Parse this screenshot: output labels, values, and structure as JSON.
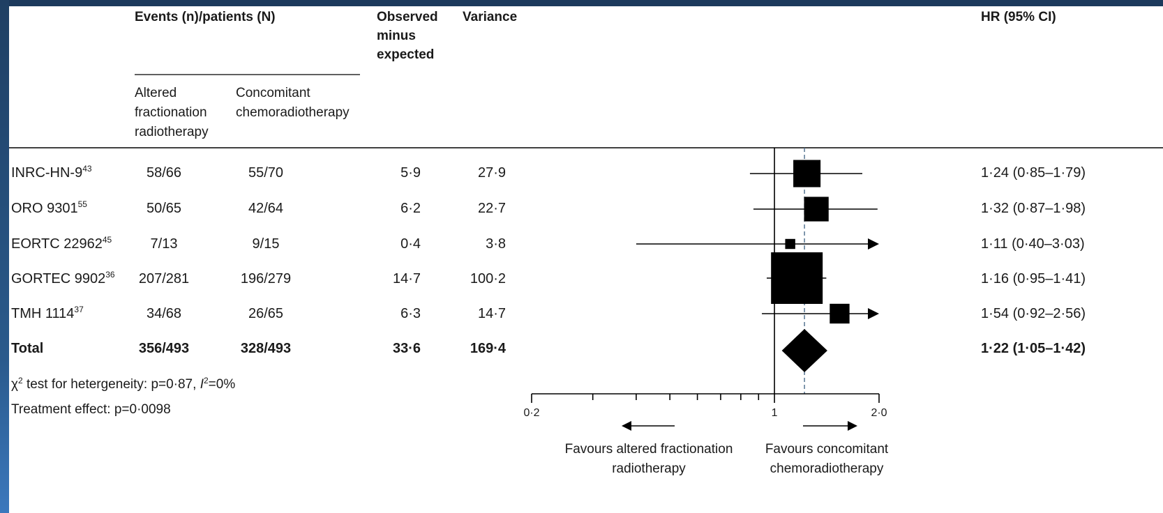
{
  "header": {
    "events": "Events (n)/patients (N)",
    "altered": [
      "Altered",
      "fractionation",
      "radiotherapy"
    ],
    "concomitant": [
      "Concomitant",
      "chemoradiotherapy"
    ],
    "ome": [
      "Observed",
      "minus",
      "expected"
    ],
    "variance": "Variance",
    "hr": "HR (95% CI)"
  },
  "rows": [
    {
      "name": "INRC-HN-9",
      "ref": "43",
      "altered": "58/66",
      "concomitant": "55/70",
      "ome": "5·9",
      "variance": "27·9",
      "hr_text": "1·24 (0·85–1·79)"
    },
    {
      "name": "ORO 9301",
      "ref": "55",
      "altered": "50/65",
      "concomitant": "42/64",
      "ome": "6·2",
      "variance": "22·7",
      "hr_text": "1·32 (0·87–1·98)"
    },
    {
      "name": "EORTC 22962",
      "ref": "45",
      "altered": "7/13",
      "concomitant": "9/15",
      "ome": "0·4",
      "variance": "3·8",
      "hr_text": "1·11 (0·40–3·03)"
    },
    {
      "name": "GORTEC 9902",
      "ref": "36",
      "altered": "207/281",
      "concomitant": "196/279",
      "ome": "14·7",
      "variance": "100·2",
      "hr_text": "1·16 (0·95–1·41)"
    },
    {
      "name": "TMH 1114",
      "ref": "37",
      "altered": "34/68",
      "concomitant": "26/65",
      "ome": "6·3",
      "variance": "14·7",
      "hr_text": "1·54 (0·92–2·56)"
    }
  ],
  "total": {
    "name": "Total",
    "altered": "356/493",
    "concomitant": "328/493",
    "ome": "33·6",
    "variance": "169·4",
    "hr_text": "1·22 (1·05–1·42)"
  },
  "footer": {
    "heterogeneity_prefix": "χ",
    "heterogeneity_sup": "2",
    "heterogeneity_mid": " test for hetergeneity: p=0·87, ",
    "heterogeneity_i": "I",
    "heterogeneity_i_sup": "2",
    "heterogeneity_end": "=0%",
    "treatment": "Treatment effect: p=0·0098"
  },
  "axis": {
    "tick_labels": [
      {
        "value": 0.2,
        "text": "0·2"
      },
      {
        "value": 1,
        "text": "1"
      },
      {
        "value": 2,
        "text": "2·0"
      }
    ],
    "favours_left": [
      "Favours altered fractionation",
      "radiotherapy"
    ],
    "favours_right": [
      "Favours concomitant",
      "chemoradiotherapy"
    ]
  },
  "colors": {
    "ink": "#000000",
    "pooled_line": "#4a6b8a",
    "frame": "#1c3a5c"
  },
  "chart_data": {
    "type": "forest",
    "scale": "log",
    "xlim": [
      0.2,
      2.0
    ],
    "ticks": [
      0.2,
      0.3,
      0.4,
      0.5,
      0.6,
      0.7,
      0.8,
      0.9,
      1,
      2
    ],
    "reference_line": 1,
    "pooled_line": 1.22,
    "studies": [
      {
        "name": "INRC-HN-9",
        "hr": 1.24,
        "lo": 0.85,
        "hi": 1.79,
        "variance": 27.9,
        "arrow": false
      },
      {
        "name": "ORO 9301",
        "hr": 1.32,
        "lo": 0.87,
        "hi": 1.98,
        "variance": 22.7,
        "arrow": false
      },
      {
        "name": "EORTC 22962",
        "hr": 1.11,
        "lo": 0.4,
        "hi": 3.03,
        "variance": 3.8,
        "arrow": true
      },
      {
        "name": "GORTEC 9902",
        "hr": 1.16,
        "lo": 0.95,
        "hi": 1.41,
        "variance": 100.2,
        "arrow": false
      },
      {
        "name": "TMH 1114",
        "hr": 1.54,
        "lo": 0.92,
        "hi": 2.56,
        "variance": 14.7,
        "arrow": true
      }
    ],
    "total": {
      "hr": 1.22,
      "lo": 1.05,
      "hi": 1.42
    }
  }
}
